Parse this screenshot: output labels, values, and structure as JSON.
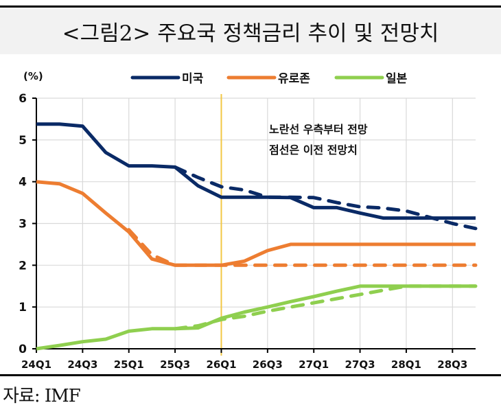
{
  "header": {
    "title": "<그림2> 주요국 정책금리 추이 및 전망치"
  },
  "footer": {
    "source": "자료: IMF"
  },
  "chart_data": {
    "type": "line",
    "title": "<그림2> 주요국 정책금리 추이 및 전망치",
    "ylabel": "(%)",
    "xlabel": "",
    "ylim": [
      0,
      6
    ],
    "yticks": [
      0,
      1,
      2,
      3,
      4,
      5,
      6
    ],
    "x": [
      "24Q1",
      "24Q2",
      "24Q3",
      "24Q4",
      "25Q1",
      "25Q2",
      "25Q3",
      "25Q4",
      "26Q1",
      "26Q2",
      "26Q3",
      "26Q4",
      "27Q1",
      "27Q2",
      "27Q3",
      "27Q4",
      "28Q1",
      "28Q2",
      "28Q3",
      "28Q4"
    ],
    "xtick_labels": [
      "24Q1",
      "24Q3",
      "25Q1",
      "25Q3",
      "26Q1",
      "26Q3",
      "27Q1",
      "27Q3",
      "28Q1",
      "28Q3"
    ],
    "grid": true,
    "legend_position": "top",
    "forecast_start": "26Q1",
    "forecast_line_color": "#f2c744",
    "annotations": [
      "노란선 우측부터 전망",
      "점선은 이전 전망치"
    ],
    "series": [
      {
        "name": "미국",
        "color": "#0a2a66",
        "style": "solid",
        "values": [
          5.38,
          5.38,
          5.33,
          4.7,
          4.38,
          4.38,
          4.35,
          3.9,
          3.63,
          3.63,
          3.63,
          3.62,
          3.38,
          3.38,
          3.25,
          3.13,
          3.13,
          3.13,
          3.13,
          3.13
        ]
      },
      {
        "name": "미국 (이전 전망)",
        "color": "#0a2a66",
        "style": "dashed",
        "legend": false,
        "values": [
          null,
          null,
          null,
          null,
          null,
          null,
          4.35,
          4.1,
          3.88,
          3.8,
          3.63,
          3.63,
          3.62,
          3.5,
          3.4,
          3.37,
          3.3,
          3.15,
          3.0,
          2.88
        ]
      },
      {
        "name": "유로존",
        "color": "#ed7d31",
        "style": "solid",
        "values": [
          4.0,
          3.95,
          3.72,
          3.25,
          2.8,
          2.15,
          2.0,
          2.0,
          2.0,
          2.1,
          2.35,
          2.5,
          2.5,
          2.5,
          2.5,
          2.5,
          2.5,
          2.5,
          2.5,
          2.5
        ]
      },
      {
        "name": "유로존 (이전 전망)",
        "color": "#ed7d31",
        "style": "dashed",
        "legend": false,
        "values": [
          null,
          null,
          null,
          null,
          2.85,
          2.25,
          2.0,
          2.0,
          2.0,
          2.0,
          2.0,
          2.0,
          2.0,
          2.0,
          2.0,
          2.0,
          2.0,
          2.0,
          2.0,
          2.0
        ]
      },
      {
        "name": "일본",
        "color": "#8fcf4f",
        "style": "solid",
        "values": [
          0.0,
          0.08,
          0.17,
          0.23,
          0.42,
          0.48,
          0.48,
          0.5,
          0.73,
          0.88,
          1.0,
          1.13,
          1.25,
          1.38,
          1.5,
          1.5,
          1.5,
          1.5,
          1.5,
          1.5
        ]
      },
      {
        "name": "일본 (이전 전망)",
        "color": "#8fcf4f",
        "style": "dashed",
        "legend": false,
        "values": [
          null,
          null,
          null,
          null,
          null,
          null,
          0.48,
          0.55,
          0.7,
          0.78,
          0.9,
          1.0,
          1.1,
          1.2,
          1.3,
          1.4,
          1.5,
          1.5,
          1.5,
          1.5
        ]
      }
    ]
  }
}
